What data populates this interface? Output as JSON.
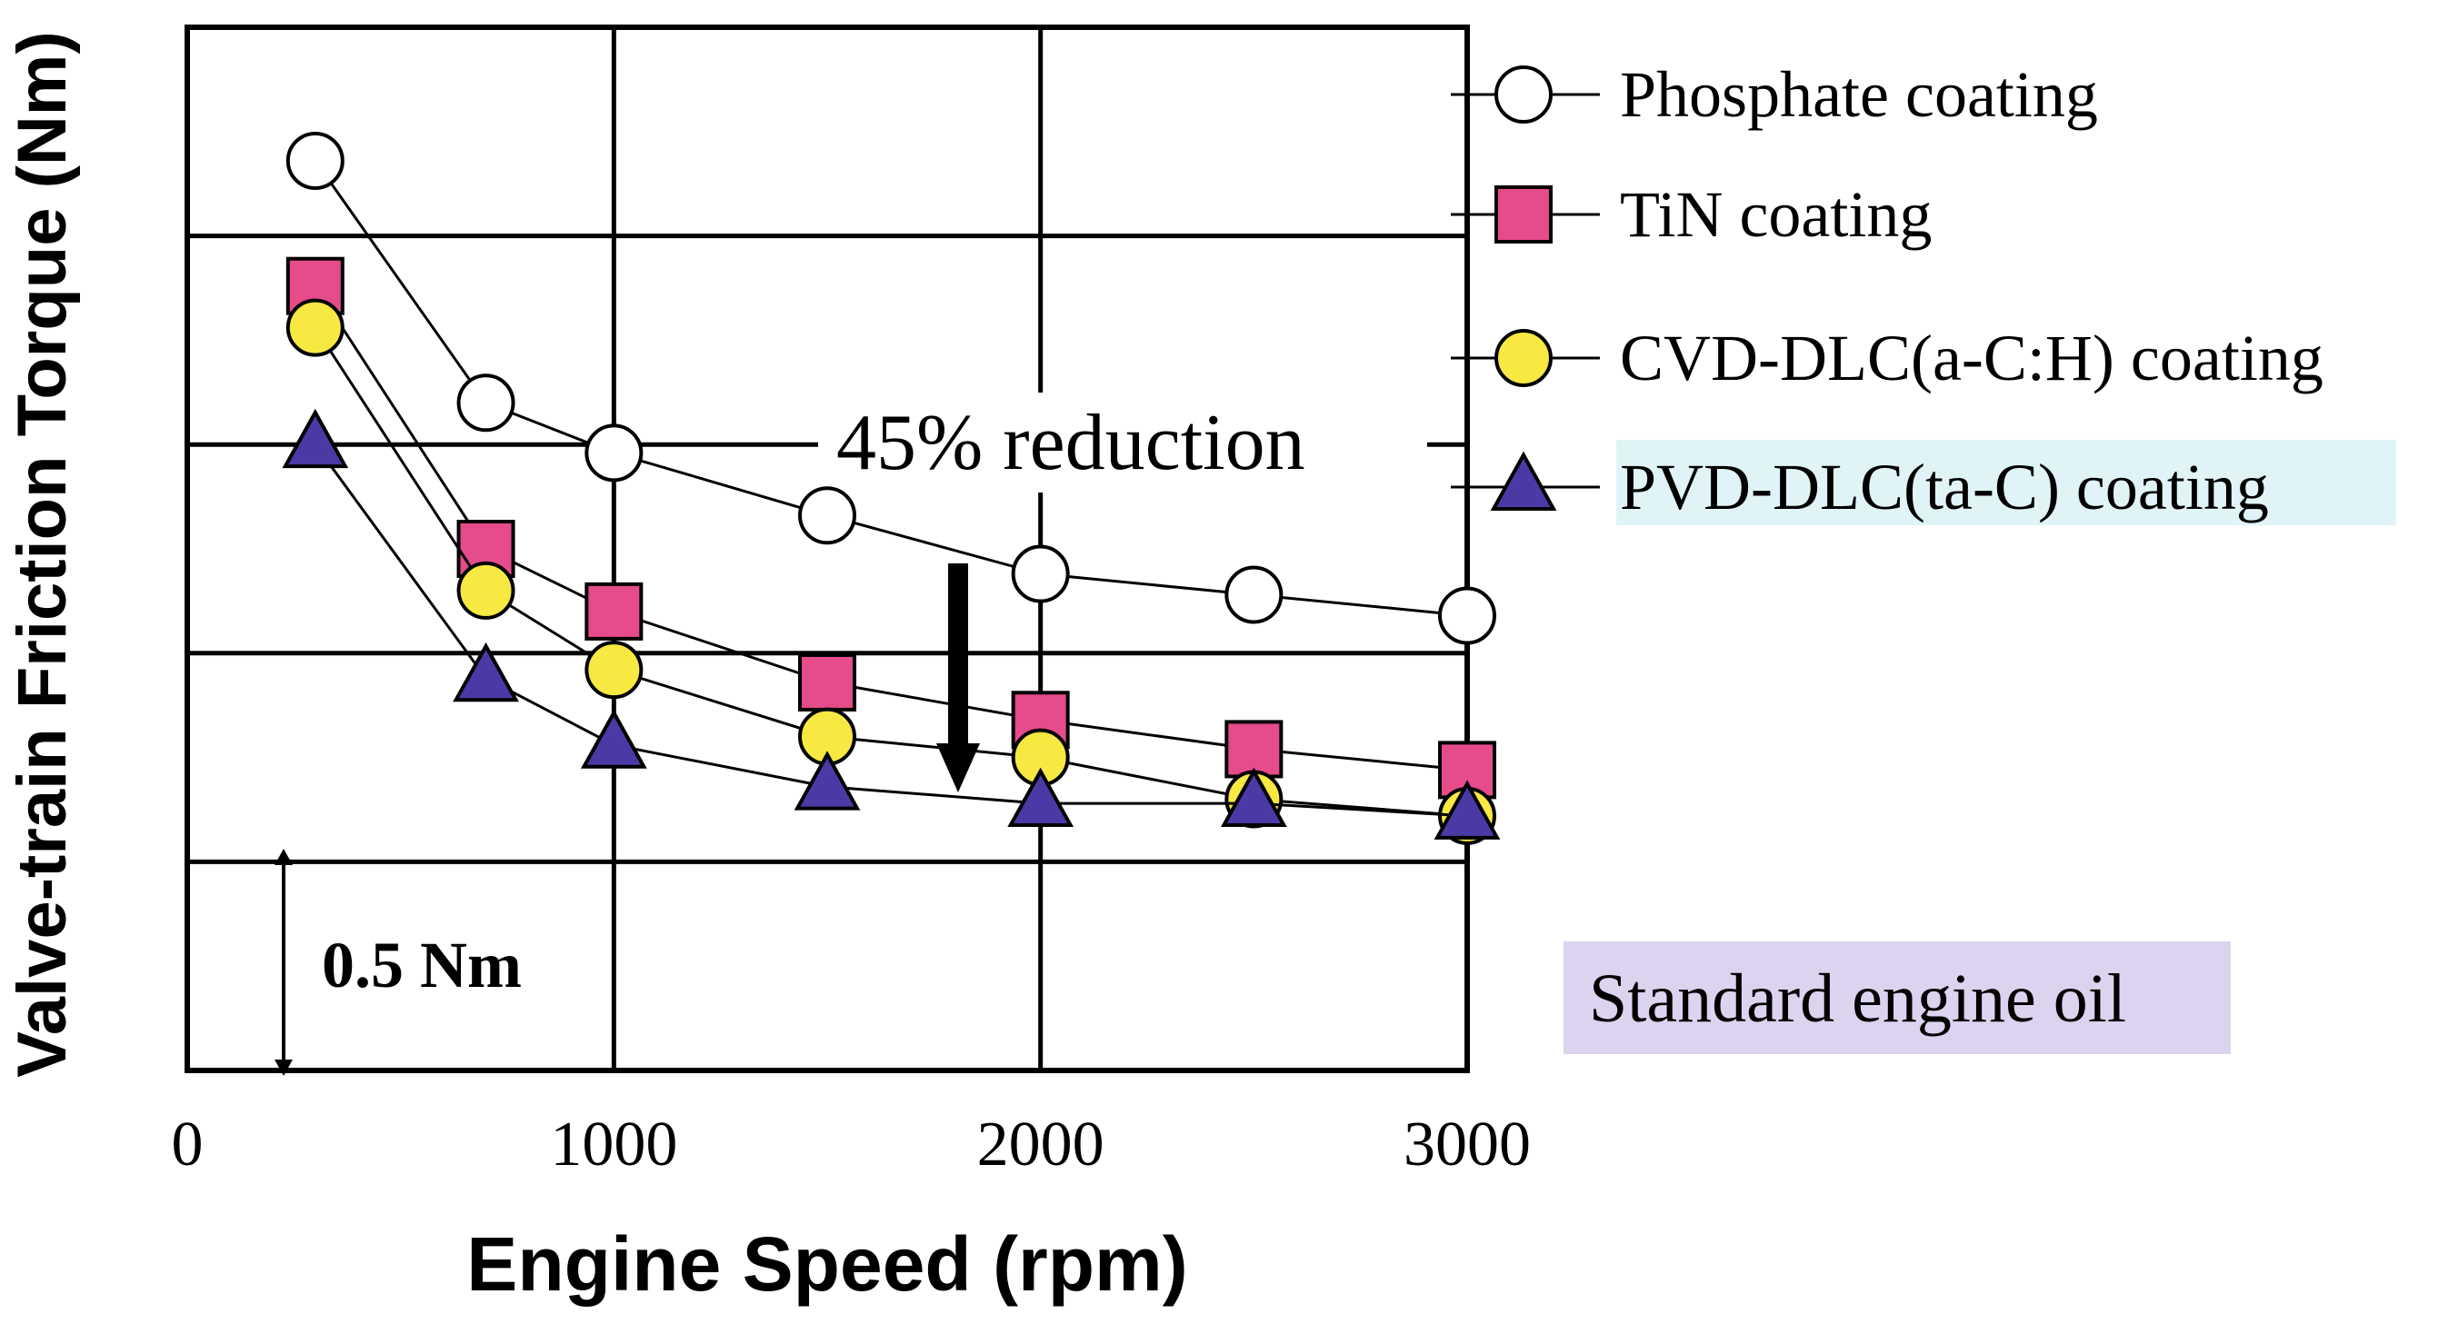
{
  "chart_data": {
    "type": "line",
    "xlabel": "Engine Speed (rpm)",
    "ylabel": "Valve-train Friction Torque (Nm)",
    "xlim": [
      0,
      3000
    ],
    "x_ticks": [
      "0",
      "1000",
      "2000",
      "3000"
    ],
    "ylim": [
      0,
      2.5
    ],
    "grid": true,
    "legend_position": "right",
    "series": [
      {
        "name": "Phosphate coating",
        "marker": "circle",
        "color": "#ffffff",
        "x": [
          300,
          700,
          1000,
          1500,
          2000,
          2500,
          3000
        ],
        "y": [
          2.18,
          1.6,
          1.48,
          1.33,
          1.19,
          1.14,
          1.09
        ]
      },
      {
        "name": "TiN coating",
        "marker": "square",
        "color": "#e64b8c",
        "x": [
          300,
          700,
          1000,
          1500,
          2000,
          2500,
          3000
        ],
        "y": [
          1.88,
          1.25,
          1.1,
          0.93,
          0.84,
          0.77,
          0.72
        ]
      },
      {
        "name": "CVD-DLC(a-C:H) coating",
        "marker": "circle",
        "color": "#f7e842",
        "x": [
          300,
          700,
          1000,
          1500,
          2000,
          2500,
          3000
        ],
        "y": [
          1.78,
          1.15,
          0.96,
          0.8,
          0.75,
          0.65,
          0.61
        ]
      },
      {
        "name": "PVD-DLC(ta-C) coating",
        "marker": "triangle",
        "color": "#4b3aa5",
        "x": [
          300,
          700,
          1000,
          1500,
          2000,
          2500,
          3000
        ],
        "y": [
          1.5,
          0.94,
          0.78,
          0.68,
          0.64,
          0.64,
          0.61
        ]
      }
    ],
    "annotations": {
      "reduction": "45% reduction",
      "scale_bar": "0.5 Nm",
      "condition": "Standard engine oil"
    }
  }
}
